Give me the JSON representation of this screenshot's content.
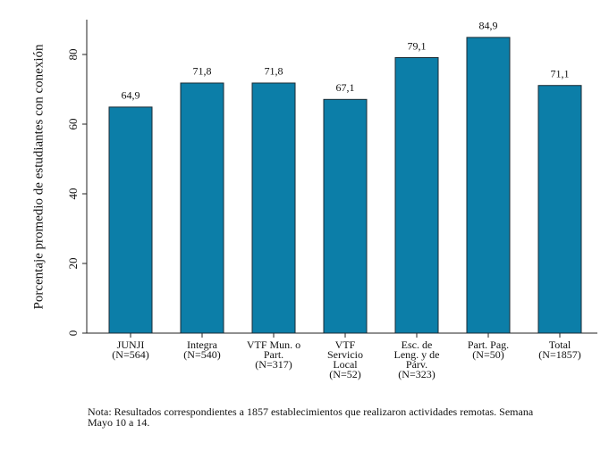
{
  "chart_data": {
    "type": "bar",
    "y_label": "Porcentaje promedio de estudiantes con conexión",
    "categories": [
      [
        "JUNJI",
        "(N=564)"
      ],
      [
        "Integra",
        "(N=540)"
      ],
      [
        "VTF Mun. o",
        "Part.",
        "(N=317)"
      ],
      [
        "VTF",
        "Servicio",
        "Local",
        "(N=52)"
      ],
      [
        "Esc. de",
        "Leng. y de",
        "Párv.",
        "(N=323)"
      ],
      [
        "Part. Pag.",
        "(N=50)"
      ],
      [
        "Total",
        "(N=1857)"
      ]
    ],
    "values": [
      64.9,
      71.8,
      71.8,
      67.1,
      79.1,
      84.9,
      71.1
    ],
    "value_labels": [
      "64,9",
      "71,8",
      "71,8",
      "67,1",
      "79,1",
      "84,9",
      "71,1"
    ],
    "color": "#0c7ea8",
    "ylim": [
      0,
      90
    ],
    "yticks": [
      0,
      20,
      40,
      60,
      80
    ],
    "grid": false,
    "note": [
      "Nota: Resultados correspondientes a 1857 establecimientos que realizaron actividades remotas. Semana",
      "Mayo 10 a 14."
    ]
  }
}
